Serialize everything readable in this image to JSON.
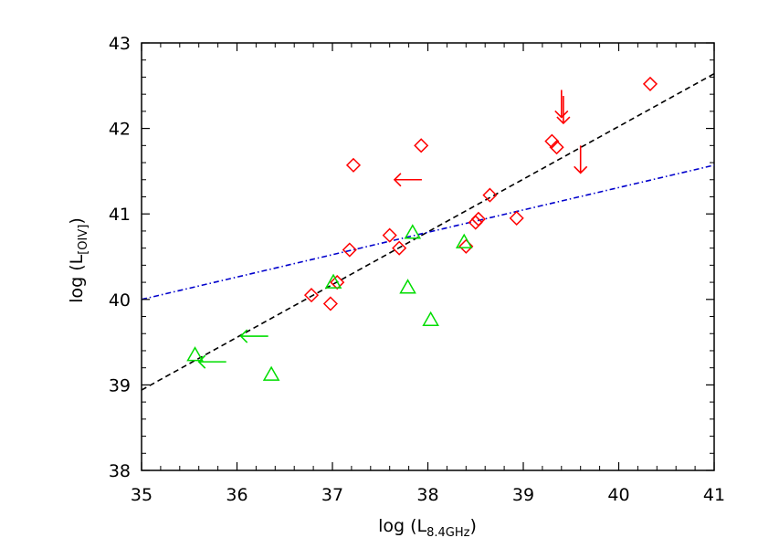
{
  "chart_data": {
    "type": "scatter",
    "title": "",
    "xlabel": {
      "prefix": "log (L",
      "sub": "8.4GHz",
      "suffix": ")"
    },
    "ylabel": {
      "prefix": "log (L",
      "sub": "[OIV]",
      "suffix": ")"
    },
    "xlim": [
      35,
      41
    ],
    "ylim": [
      38,
      43
    ],
    "xticks": [
      35,
      36,
      37,
      38,
      39,
      40,
      41
    ],
    "yticks": [
      38,
      39,
      40,
      41,
      42,
      43
    ],
    "grid": false,
    "colors": {
      "red": "#ff0000",
      "green": "#00dd00",
      "black": "#000000",
      "blue": "#0000cc"
    },
    "series": [
      {
        "marker": "diamond",
        "color": "#ff0000",
        "points": [
          [
            36.78,
            40.05
          ],
          [
            36.98,
            39.95
          ],
          [
            37.05,
            40.2
          ],
          [
            37.18,
            40.58
          ],
          [
            37.22,
            41.57
          ],
          [
            37.6,
            40.75
          ],
          [
            37.7,
            40.6
          ],
          [
            37.93,
            41.8
          ],
          [
            38.4,
            40.62
          ],
          [
            38.5,
            40.9
          ],
          [
            38.53,
            40.94
          ],
          [
            38.65,
            41.22
          ],
          [
            38.93,
            40.95
          ],
          [
            39.3,
            41.85
          ],
          [
            39.35,
            41.78
          ],
          [
            40.33,
            42.52
          ]
        ]
      },
      {
        "marker": "triangle",
        "color": "#00dd00",
        "points": [
          [
            35.56,
            39.35
          ],
          [
            36.36,
            39.12
          ],
          [
            37.01,
            40.2
          ],
          [
            37.79,
            40.14
          ],
          [
            37.84,
            40.78
          ],
          [
            38.03,
            39.76
          ],
          [
            38.38,
            40.67
          ]
        ]
      }
    ],
    "arrows": [
      {
        "color": "#ff0000",
        "direction": "left",
        "x": 37.65,
        "y": 41.4
      },
      {
        "color": "#ff0000",
        "direction": "down",
        "x": 39.4,
        "y": 42.45
      },
      {
        "color": "#ff0000",
        "direction": "down",
        "x": 39.42,
        "y": 42.38
      },
      {
        "color": "#ff0000",
        "direction": "down",
        "x": 39.6,
        "y": 41.8
      },
      {
        "color": "#00dd00",
        "direction": "left",
        "x": 36.04,
        "y": 39.57
      },
      {
        "color": "#00dd00",
        "direction": "left",
        "x": 35.6,
        "y": 39.27
      }
    ],
    "fit_lines": [
      {
        "style": "dashed",
        "color": "#000000",
        "x": [
          35,
          41
        ],
        "y": [
          38.94,
          42.64
        ]
      },
      {
        "style": "dash-dot",
        "color": "#0000cc",
        "x": [
          35,
          41
        ],
        "y": [
          40.0,
          41.57
        ]
      }
    ]
  }
}
